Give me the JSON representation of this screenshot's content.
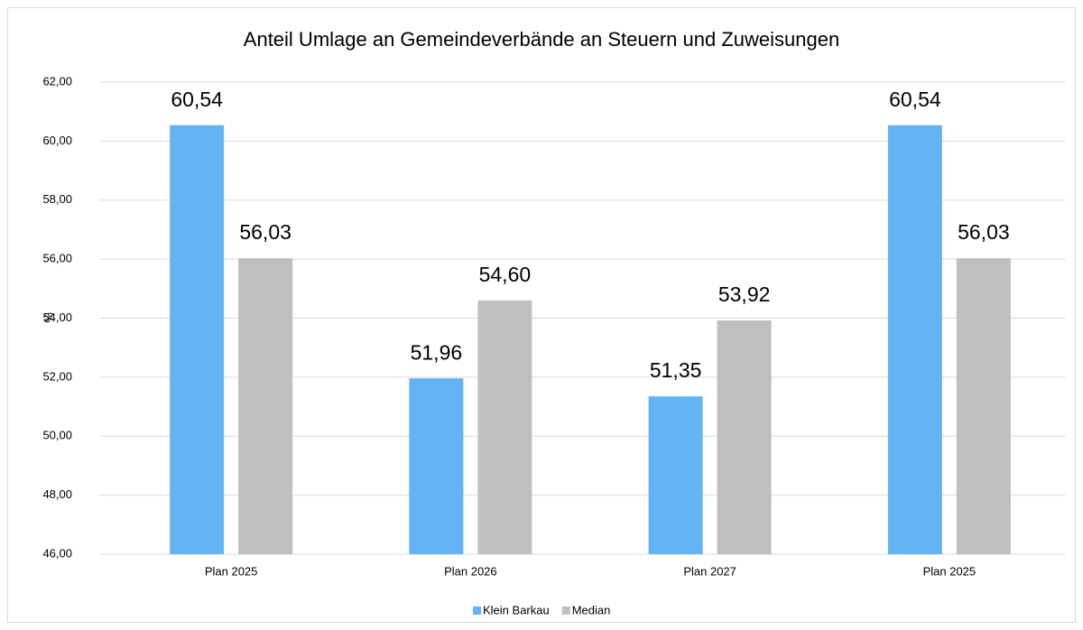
{
  "chart_data": {
    "type": "bar",
    "title": "Anteil Umlage an Gemeindeverbände an Steuern und Zuweisungen",
    "ylabel": "%",
    "categories": [
      "Plan 2025",
      "Plan 2026",
      "Plan 2027",
      "Plan 2025"
    ],
    "series": [
      {
        "name": "Klein Barkau",
        "color": "#63b3f5",
        "values": [
          60.54,
          51.96,
          51.35,
          60.54
        ],
        "value_labels": [
          "60,54",
          "51,96",
          "51,35",
          "60,54"
        ]
      },
      {
        "name": "Median",
        "color": "#bfbfbf",
        "values": [
          56.03,
          54.6,
          53.92,
          56.03
        ],
        "value_labels": [
          "56,03",
          "54,60",
          "53,92",
          "56,03"
        ]
      }
    ],
    "ylim": [
      46,
      62
    ],
    "yticks": [
      {
        "value": 46,
        "label": "46,00"
      },
      {
        "value": 48,
        "label": "48,00"
      },
      {
        "value": 50,
        "label": "50,00"
      },
      {
        "value": 52,
        "label": "52,00"
      },
      {
        "value": 54,
        "label": "54,00"
      },
      {
        "value": 56,
        "label": "56,00"
      },
      {
        "value": 58,
        "label": "58,00"
      },
      {
        "value": 60,
        "label": "60,00"
      },
      {
        "value": 62,
        "label": "62,00"
      }
    ],
    "grid": true,
    "legend": "bottom"
  }
}
